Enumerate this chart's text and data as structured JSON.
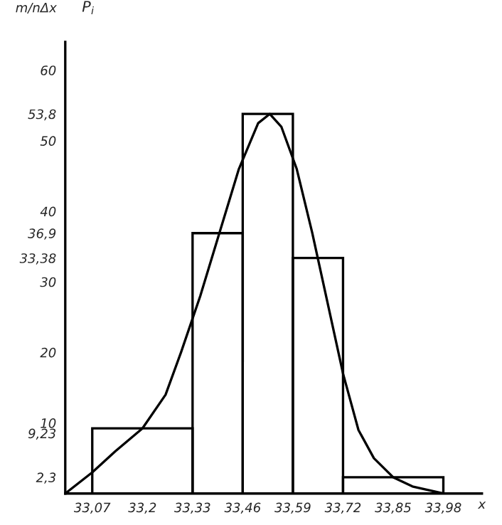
{
  "chart_data": {
    "type": "histogram",
    "xlabel": "x",
    "ylabel": "m/nΔx",
    "annotations": [
      "P$_{i}$"
    ],
    "bins": [
      33.07,
      33.33,
      33.46,
      33.59,
      33.72,
      33.98
    ],
    "values": [
      9.23,
      36.9,
      53.8,
      33.38,
      2.3
    ],
    "color": "#000000",
    "series": [
      {
        "type": "line",
        "color": "#000000",
        "x": [
          33.0,
          33.07,
          33.13,
          33.2,
          33.26,
          33.3,
          33.35,
          33.4,
          33.45,
          33.5,
          33.53,
          33.56,
          33.6,
          33.64,
          33.68,
          33.72,
          33.76,
          33.8,
          33.85,
          33.9,
          33.98
        ],
        "values": [
          0,
          3,
          6,
          9.23,
          14,
          20,
          28,
          37,
          46,
          52.5,
          53.8,
          52,
          46,
          37,
          27,
          17,
          9,
          5,
          2.3,
          1,
          0
        ]
      }
    ],
    "xlim": [
      33.0,
      34.08
    ],
    "ylim": [
      0,
      64
    ],
    "xticks": [
      {
        "value": 33.07,
        "label": "33,07"
      },
      {
        "value": 33.2,
        "label": "33,2"
      },
      {
        "value": 33.33,
        "label": "33,33"
      },
      {
        "value": 33.46,
        "label": "33,46"
      },
      {
        "value": 33.59,
        "label": "33,59"
      },
      {
        "value": 33.72,
        "label": "33,72"
      },
      {
        "value": 33.85,
        "label": "33,85"
      },
      {
        "value": 33.98,
        "label": "33,98"
      }
    ],
    "yticks": [
      {
        "value": 2.3,
        "label": "2,3"
      },
      {
        "value": 9.23,
        "label": "9,23"
      },
      10,
      20,
      30,
      {
        "value": 33.38,
        "label": "33,38"
      },
      {
        "value": 36.9,
        "label": "36,9"
      },
      40,
      50,
      {
        "value": 53.8,
        "label": "53,8"
      },
      60
    ],
    "grid": false,
    "legend": false
  }
}
